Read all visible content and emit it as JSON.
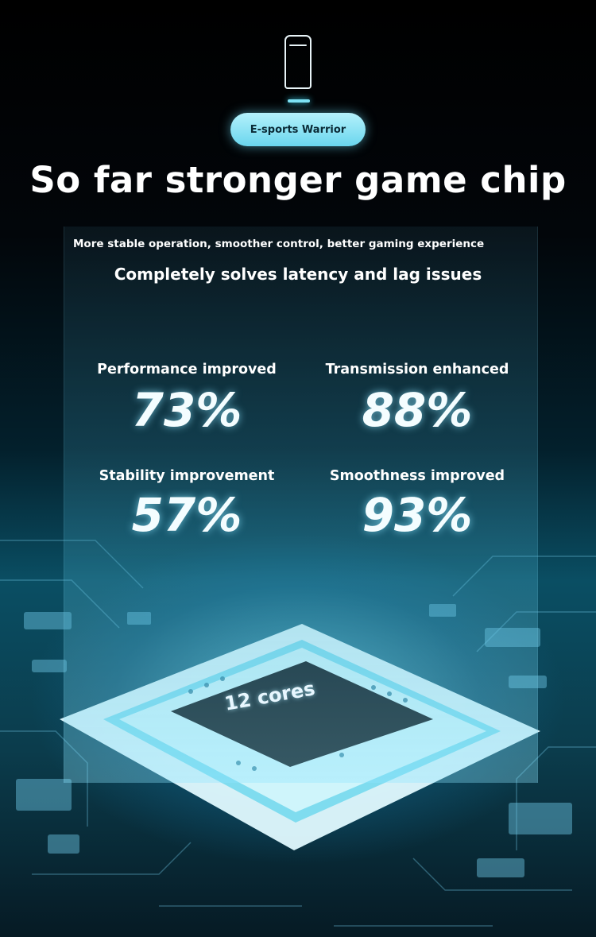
{
  "badge": {
    "label": "E-sports Warrior"
  },
  "headline": "So far stronger game chip",
  "subtitle_small": "More stable operation, smoother control, better gaming experience",
  "subtitle_large": "Completely solves latency and lag issues",
  "stats": [
    {
      "label": "Performance improved",
      "value": "73%"
    },
    {
      "label": "Transmission enhanced",
      "value": "88%"
    },
    {
      "label": "Stability improvement",
      "value": "57%"
    },
    {
      "label": "Smoothness improved",
      "value": "93%"
    }
  ],
  "chip": {
    "label": "12 cores"
  },
  "icons": {
    "device": "handheld-device-icon"
  },
  "colors": {
    "accent": "#6ad6ee",
    "glow": "#3fd2ee",
    "background": "#000000"
  }
}
